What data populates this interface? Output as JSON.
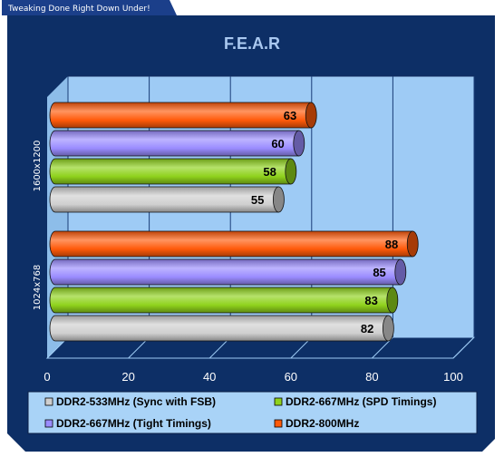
{
  "header_tag": "Tweaking Done Right Down Under!",
  "colors": {
    "frame": "#0d2f66",
    "plot_back": "#9ecbf5",
    "plot_floor": "#0d2f66",
    "legend_bg": "#a9d3f7"
  },
  "chart_data": {
    "type": "bar",
    "orientation": "horizontal",
    "title": "F.E.A.R",
    "xlabel": "",
    "ylabel": "",
    "xlim": [
      0,
      100
    ],
    "x_ticks": [
      "0",
      "20",
      "40",
      "60",
      "80",
      "100"
    ],
    "grid": true,
    "legend_position": "bottom",
    "categories": [
      "1600x1200",
      "1024x768"
    ],
    "series": [
      {
        "name": "DDR2-800MHz",
        "color": "#ff5a0a",
        "values": [
          63,
          88
        ]
      },
      {
        "name": "DDR2-667MHz (Tight Timings)",
        "color": "#9a8cff",
        "values": [
          60,
          85
        ]
      },
      {
        "name": "DDR2-667MHz (SPD Timings)",
        "color": "#8fd21c",
        "values": [
          58,
          83
        ]
      },
      {
        "name": "DDR2-533MHz (Sync with FSB)",
        "color": "#cfcfcf",
        "values": [
          55,
          82
        ]
      }
    ],
    "legend": [
      {
        "label": "DDR2-533MHz (Sync with FSB)",
        "color": "#cfcfcf"
      },
      {
        "label": "DDR2-667MHz (SPD Timings)",
        "color": "#8fd21c"
      },
      {
        "label": "DDR2-667MHz (Tight Timings)",
        "color": "#9a8cff"
      },
      {
        "label": "DDR2-800MHz",
        "color": "#ff5a0a"
      }
    ]
  }
}
